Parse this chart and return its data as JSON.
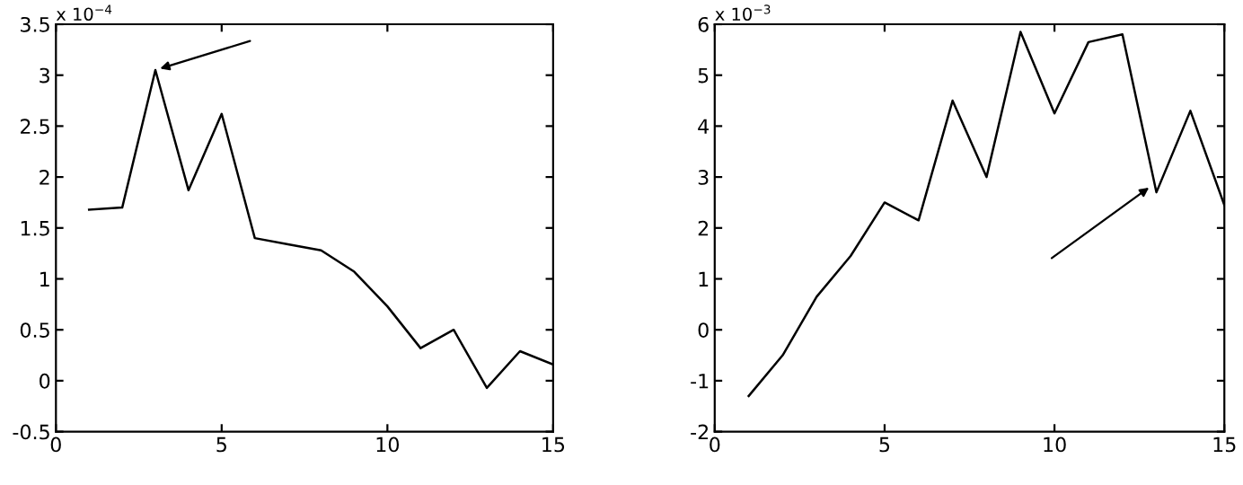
{
  "chart_data": [
    {
      "type": "line",
      "x": [
        1,
        2,
        3,
        4,
        5,
        6,
        7,
        8,
        9,
        10,
        11,
        12,
        13,
        14,
        15
      ],
      "series": [
        {
          "color": "#000000",
          "values": [
            1.68,
            1.7,
            3.05,
            1.87,
            2.62,
            1.4,
            1.34,
            1.28,
            1.07,
            0.73,
            0.32,
            0.5,
            -0.07,
            0.29,
            0.16
          ]
        }
      ],
      "xlim": [
        0,
        15
      ],
      "xticks": [
        0,
        5,
        10,
        15
      ],
      "ylim": [
        -0.5,
        3.5
      ],
      "yticks": [
        -0.5,
        0,
        0.5,
        1,
        1.5,
        2,
        2.5,
        3,
        3.5
      ],
      "annotations": [
        "x 10$^{−4}$"
      ],
      "grid": false,
      "legend": false
    },
    {
      "type": "line",
      "x": [
        1,
        2,
        3,
        4,
        5,
        6,
        7,
        8,
        9,
        10,
        11,
        12,
        13,
        14,
        15
      ],
      "series": [
        {
          "color": "#000000",
          "values": [
            -1.3,
            -0.5,
            0.65,
            1.45,
            2.5,
            2.15,
            4.5,
            3.0,
            5.85,
            4.25,
            5.65,
            5.8,
            2.7,
            4.3,
            2.45
          ]
        }
      ],
      "xlim": [
        0,
        15
      ],
      "xticks": [
        0,
        5,
        10,
        15
      ],
      "ylim": [
        -2,
        6
      ],
      "yticks": [
        -2,
        -1,
        0,
        1,
        2,
        3,
        4,
        5,
        6
      ],
      "annotations": [
        "x 10$^{−3}$"
      ],
      "grid": false,
      "legend": false
    }
  ]
}
